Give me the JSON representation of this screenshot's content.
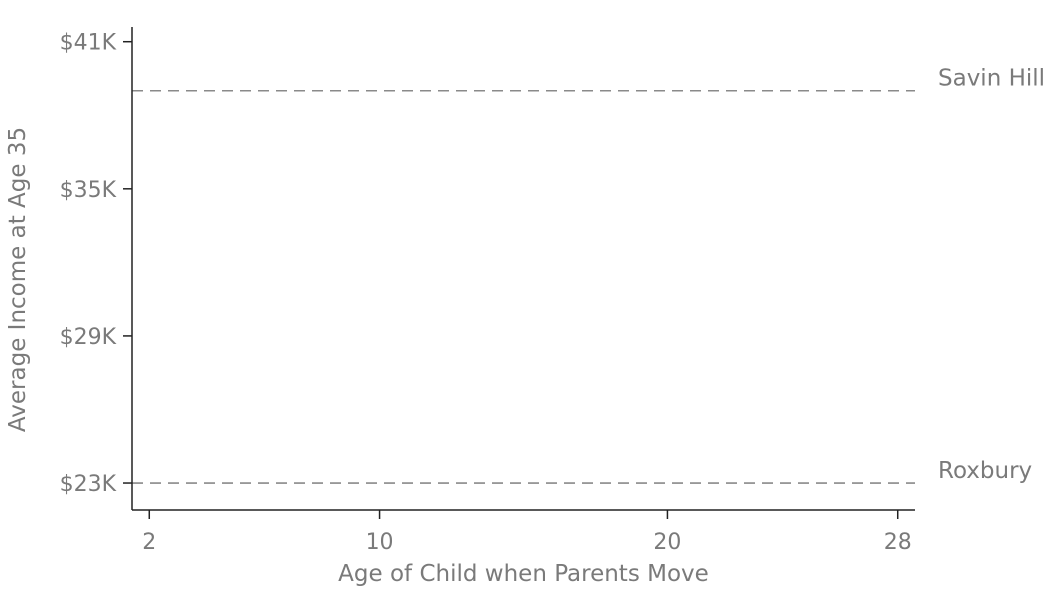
{
  "chart_data": {
    "type": "line",
    "title": "",
    "xlabel": "Age of Child when Parents Move",
    "ylabel": "Average Income at Age 35",
    "xlim": [
      1.4,
      28.6
    ],
    "ylim": [
      21900,
      41600
    ],
    "x_ticks": [
      2,
      10,
      20,
      28
    ],
    "y_ticks": [
      23000,
      29000,
      35000,
      41000
    ],
    "x_tick_labels": [
      "2",
      "10",
      "20",
      "28"
    ],
    "y_tick_labels": [
      "$23K",
      "$29K",
      "$35K",
      "$41K"
    ],
    "grid": false,
    "legend": "none",
    "reference_lines": [
      {
        "label": "Savin Hill",
        "y": 39000,
        "style": "dashed",
        "color": "#8a8a8a"
      },
      {
        "label": "Roxbury",
        "y": 23000,
        "style": "dashed",
        "color": "#8a8a8a"
      }
    ]
  }
}
